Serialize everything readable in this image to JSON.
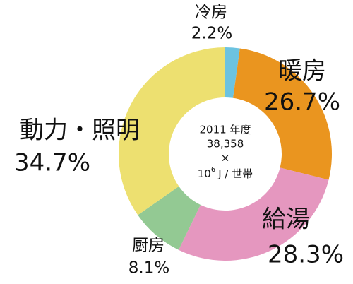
{
  "chart_data": {
    "type": "donut",
    "categories": [
      "冷房",
      "暖房",
      "給湯",
      "厨房",
      "動力・照明"
    ],
    "values": [
      2.2,
      26.7,
      28.3,
      8.1,
      34.7
    ],
    "value_labels": [
      "2.2%",
      "26.7%",
      "28.3%",
      "8.1%",
      "34.7%"
    ],
    "colors": [
      "#6cc3e0",
      "#ea951f",
      "#e597bf",
      "#93c993",
      "#ede070"
    ],
    "center_lines": [
      "2011 年度",
      "38,358",
      "×"
    ],
    "center_unit": {
      "base": "10",
      "exponent": "6",
      "rest": "J / 世帯"
    }
  }
}
